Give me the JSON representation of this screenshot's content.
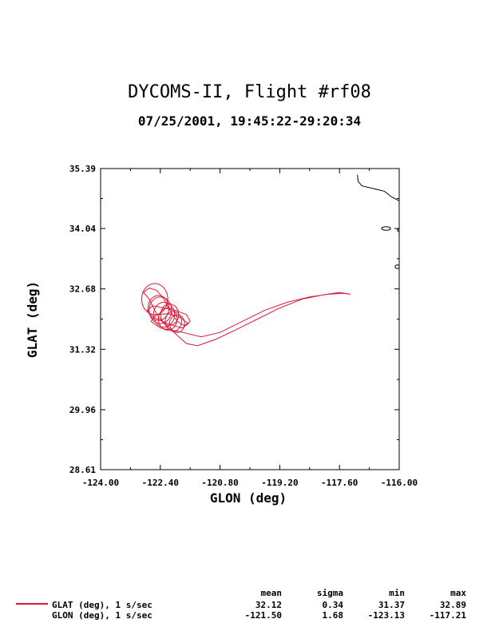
{
  "header": {
    "title": "DYCOMS-II, Flight #rf08",
    "subtitle": "07/25/2001, 19:45:22-29:20:34"
  },
  "chart_data": {
    "type": "line",
    "xlabel": "GLON (deg)",
    "ylabel": "GLAT (deg)",
    "xlim": [
      -124.0,
      -116.0
    ],
    "ylim": [
      28.61,
      35.39
    ],
    "xticks": [
      "-124.00",
      "-122.40",
      "-120.80",
      "-119.20",
      "-117.60",
      "-116.00"
    ],
    "yticks": [
      "28.61",
      "29.96",
      "31.32",
      "32.68",
      "34.04",
      "35.39"
    ],
    "grid": false,
    "series": [
      {
        "name": "GLAT (deg), 1 s/sec",
        "color": "#d81b3c",
        "path": [
          [
            -117.3,
            32.56
          ],
          [
            -117.6,
            32.6
          ],
          [
            -118.0,
            32.55
          ],
          [
            -118.6,
            32.45
          ],
          [
            -119.2,
            32.25
          ],
          [
            -119.8,
            32.0
          ],
          [
            -120.4,
            31.75
          ],
          [
            -120.9,
            31.55
          ],
          [
            -121.4,
            31.4
          ],
          [
            -121.7,
            31.45
          ],
          [
            -121.9,
            31.6
          ],
          [
            -122.1,
            31.75
          ],
          [
            -122.3,
            31.9
          ],
          [
            -122.45,
            32.05
          ],
          [
            -122.55,
            32.2
          ],
          [
            -122.7,
            32.45
          ],
          [
            -122.85,
            32.6
          ],
          [
            -122.7,
            32.7
          ],
          [
            -122.5,
            32.65
          ],
          [
            -122.3,
            32.45
          ],
          [
            -122.15,
            32.2
          ],
          [
            -121.95,
            31.95
          ],
          [
            -121.75,
            31.85
          ],
          [
            -121.6,
            31.95
          ],
          [
            -121.7,
            32.1
          ],
          [
            -122.0,
            32.2
          ],
          [
            -122.3,
            32.25
          ],
          [
            -122.6,
            32.3
          ],
          [
            -122.75,
            32.2
          ],
          [
            -122.6,
            32.05
          ],
          [
            -122.35,
            31.95
          ],
          [
            -122.05,
            31.85
          ],
          [
            -121.8,
            31.8
          ],
          [
            -121.65,
            31.9
          ],
          [
            -121.9,
            32.05
          ],
          [
            -122.2,
            32.12
          ],
          [
            -122.5,
            32.1
          ],
          [
            -122.65,
            31.95
          ],
          [
            -122.4,
            31.8
          ],
          [
            -122.1,
            31.75
          ],
          [
            -121.8,
            31.7
          ],
          [
            -121.3,
            31.6
          ],
          [
            -120.8,
            31.7
          ],
          [
            -120.2,
            31.95
          ],
          [
            -119.6,
            32.2
          ],
          [
            -119.0,
            32.38
          ],
          [
            -118.4,
            32.5
          ],
          [
            -117.9,
            32.56
          ],
          [
            -117.5,
            32.58
          ],
          [
            -117.3,
            32.56
          ]
        ],
        "circles": [
          [
            -122.55,
            32.45,
            0.35
          ],
          [
            -122.4,
            32.2,
            0.3
          ],
          [
            -122.3,
            32.1,
            0.28
          ],
          [
            -122.2,
            32.0,
            0.25
          ],
          [
            -122.05,
            31.95,
            0.22
          ],
          [
            -121.95,
            31.9,
            0.2
          ],
          [
            -122.45,
            32.25,
            0.28
          ],
          [
            -122.15,
            32.1,
            0.24
          ]
        ]
      }
    ],
    "coast": [
      [
        [
          -117.12,
          35.25
        ],
        [
          -117.1,
          35.1
        ],
        [
          -117.0,
          35.0
        ],
        [
          -116.6,
          34.92
        ],
        [
          -116.4,
          34.88
        ],
        [
          -116.2,
          34.75
        ],
        [
          -115.9,
          34.62
        ],
        [
          -115.6,
          34.48
        ],
        [
          -115.3,
          34.35
        ],
        [
          -115.05,
          34.22
        ],
        [
          -114.8,
          34.15
        ],
        [
          -114.6,
          34.02
        ],
        [
          -114.3,
          33.92
        ],
        [
          -114.15,
          33.7
        ],
        [
          -114.0,
          33.55
        ],
        [
          -113.85,
          33.4
        ],
        [
          -113.7,
          33.22
        ],
        [
          -113.6,
          33.0
        ],
        [
          -113.55,
          32.82
        ],
        [
          -113.5,
          32.68
        ],
        [
          -113.45,
          32.52
        ],
        [
          -113.4,
          32.35
        ],
        [
          -113.3,
          32.18
        ],
        [
          -113.2,
          32.0
        ],
        [
          -113.05,
          31.85
        ],
        [
          -112.95,
          31.7
        ],
        [
          -112.85,
          31.55
        ],
        [
          -112.75,
          31.4
        ],
        [
          -112.6,
          31.25
        ],
        [
          -112.45,
          31.1
        ],
        [
          -112.35,
          30.95
        ],
        [
          -112.25,
          30.82
        ],
        [
          -112.2,
          30.68
        ]
      ],
      [
        [
          -113.5,
          32.7
        ],
        [
          -110.0,
          32.75
        ]
      ]
    ],
    "islands": [
      [
        -116.35,
        34.04,
        0.12,
        0.04
      ],
      [
        -115.85,
        34.0,
        0.2,
        0.05
      ],
      [
        -115.35,
        33.98,
        0.1,
        0.04
      ],
      [
        -114.85,
        33.42,
        0.1,
        0.05
      ],
      [
        -115.2,
        33.1,
        0.06,
        0.04
      ],
      [
        -116.05,
        33.18,
        0.06,
        0.04
      ],
      [
        -115.15,
        32.75,
        0.07,
        0.05
      ],
      [
        -114.95,
        29.12,
        0.07,
        0.15
      ]
    ]
  },
  "legend": {
    "headers": [
      "mean",
      "sigma",
      "min",
      "max"
    ],
    "rows": [
      {
        "label": "GLAT (deg), 1 s/sec",
        "values": [
          "32.12",
          "0.34",
          "31.37",
          "32.89"
        ]
      },
      {
        "label": "GLON (deg), 1 s/sec",
        "values": [
          "-121.50",
          "1.68",
          "-123.13",
          "-117.21"
        ]
      }
    ]
  }
}
